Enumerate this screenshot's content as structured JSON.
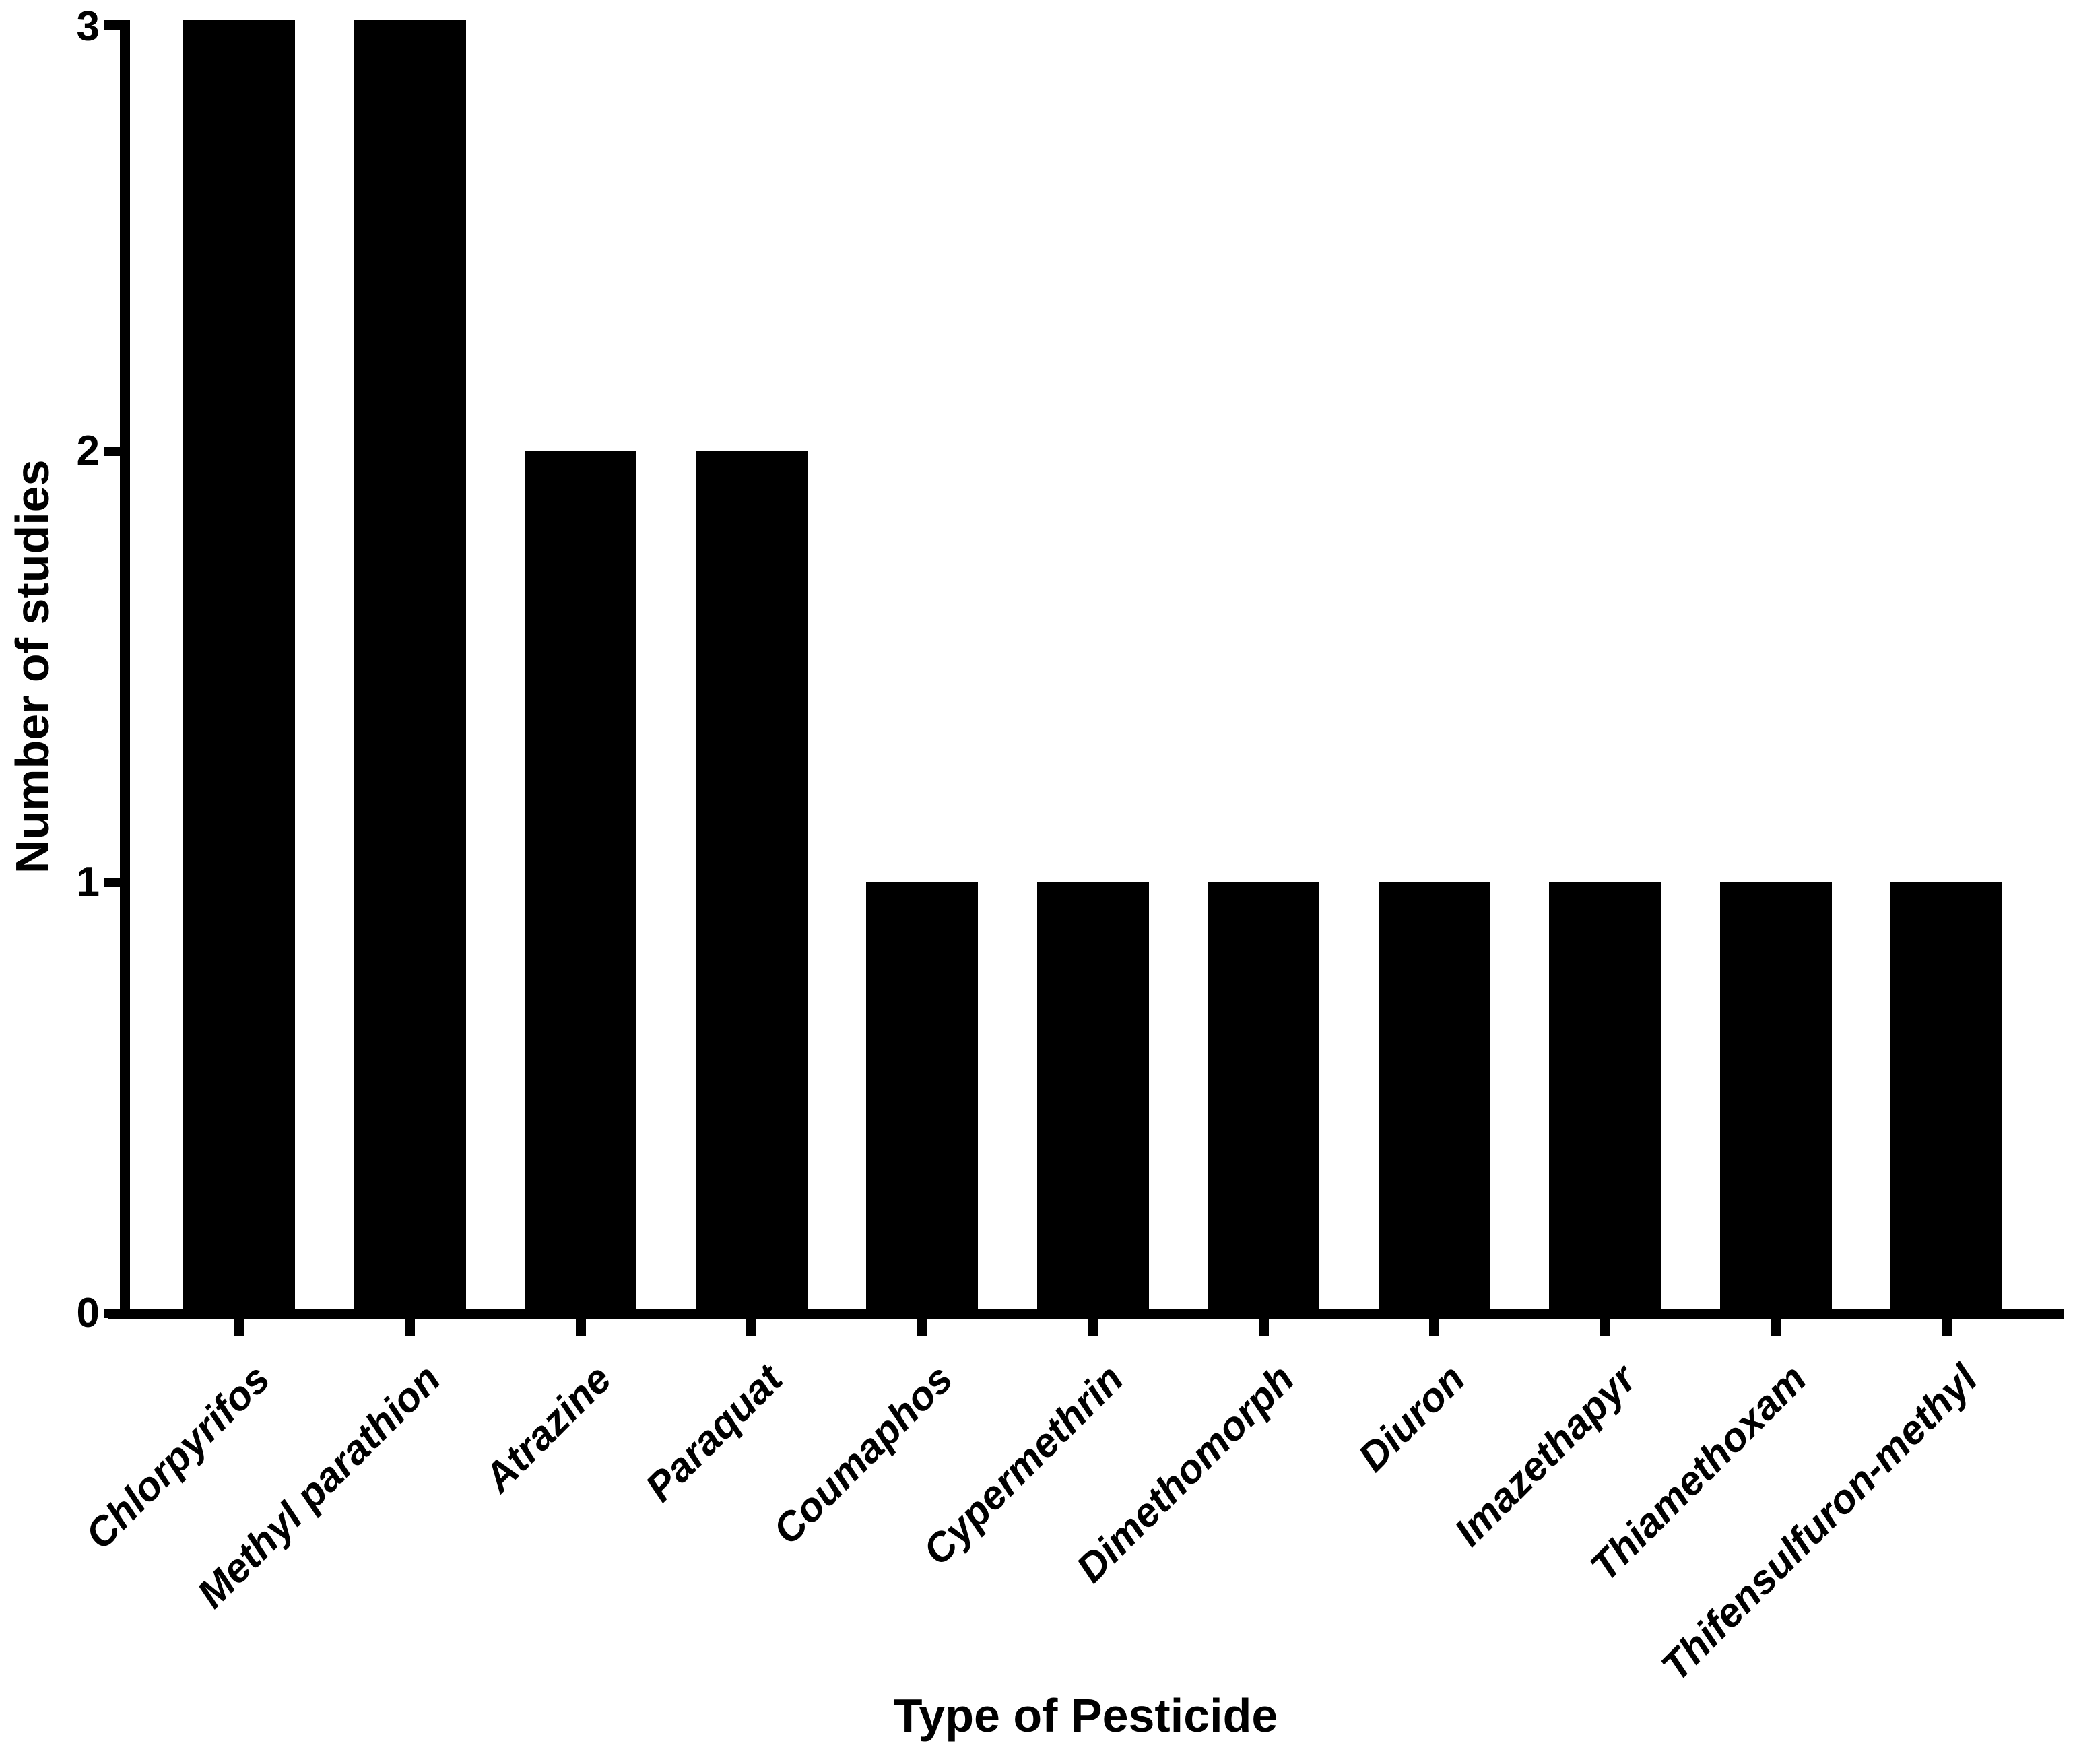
{
  "chart_data": {
    "type": "bar",
    "title": "",
    "categories": [
      "Chlorpyrifos",
      "Methyl parathion",
      "Atrazine",
      "Paraquat",
      "Coumaphos",
      "Cypermethrin",
      "Dimethomorph",
      "Diuron",
      "Imazethapyr",
      "Thiamethoxam",
      "Thifensulfuron-methyl"
    ],
    "values": [
      3,
      3,
      2,
      2,
      1,
      1,
      1,
      1,
      1,
      1,
      1
    ],
    "xlabel": "Type of Pesticide",
    "ylabel": "Number of studies",
    "ylim": [
      0,
      3
    ],
    "yticks": [
      0,
      1,
      2,
      3
    ],
    "ytick_labels": [
      "0",
      "1",
      "2",
      "3"
    ],
    "x_tick_label_rotation_deg": 45,
    "bar_color": "#000000",
    "axis_color": "#000000",
    "text_color": "#000000",
    "background_color": "#ffffff",
    "grid": false,
    "legend_position": "none"
  }
}
